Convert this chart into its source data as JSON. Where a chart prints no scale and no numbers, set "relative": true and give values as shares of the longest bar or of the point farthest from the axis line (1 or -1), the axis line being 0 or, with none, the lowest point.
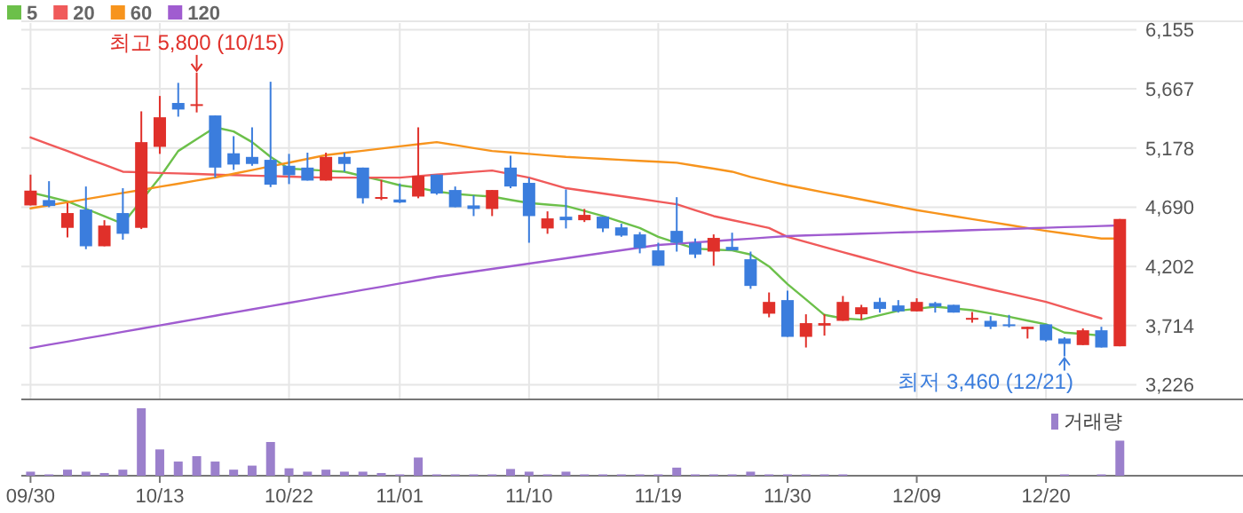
{
  "chart_data": [
    {
      "type": "candlestick",
      "categories": [
        "09/30",
        null,
        null,
        null,
        null,
        null,
        null,
        "10/13",
        null,
        null,
        null,
        null,
        null,
        null,
        "10/22",
        null,
        null,
        null,
        null,
        null,
        "11/01",
        null,
        null,
        null,
        null,
        null,
        null,
        "11/10",
        null,
        null,
        null,
        null,
        null,
        null,
        "11/19",
        null,
        null,
        null,
        null,
        null,
        null,
        "11/30",
        null,
        null,
        null,
        null,
        null,
        null,
        "12/09",
        null,
        null,
        null,
        null,
        null,
        null,
        "12/20",
        null,
        null,
        null,
        null
      ],
      "ohlc": [
        [
          4705,
          4959,
          4705,
          4827
        ],
        [
          4749,
          4905,
          4690,
          4700
        ],
        [
          4520,
          4725,
          4441,
          4642
        ],
        [
          4671,
          4861,
          4344,
          4368
        ],
        [
          4368,
          4583,
          4368,
          4539
        ],
        [
          4642,
          4847,
          4422,
          4471
        ],
        [
          4520,
          5481,
          4510,
          5227
        ],
        [
          5188,
          5608,
          5130,
          5432
        ],
        [
          5550,
          5716,
          5437,
          5496
        ],
        [
          5530,
          5800,
          5472,
          5540
        ],
        [
          5447,
          5447,
          4934,
          5017
        ],
        [
          5135,
          5276,
          4998,
          5042
        ],
        [
          5105,
          5349,
          5032,
          5047
        ],
        [
          5081,
          5725,
          4856,
          4876
        ],
        [
          5032,
          5130,
          4881,
          4954
        ],
        [
          5017,
          5140,
          4910,
          4910
        ],
        [
          4910,
          5140,
          4910,
          5105
        ],
        [
          5105,
          5140,
          4983,
          5047
        ],
        [
          5017,
          5017,
          4720,
          4764
        ],
        [
          4764,
          4915,
          4749,
          4774
        ],
        [
          4754,
          4886,
          4725,
          4729
        ],
        [
          4778,
          5349,
          4764,
          4949
        ],
        [
          4959,
          4959,
          4793,
          4803
        ],
        [
          4832,
          4861,
          4690,
          4690
        ],
        [
          4705,
          4788,
          4617,
          4676
        ],
        [
          4676,
          4832,
          4617,
          4832
        ],
        [
          5017,
          5115,
          4847,
          4861
        ],
        [
          4891,
          4934,
          4397,
          4617
        ],
        [
          4515,
          4656,
          4471,
          4598
        ],
        [
          4612,
          4837,
          4515,
          4583
        ],
        [
          4583,
          4676,
          4568,
          4627
        ],
        [
          4612,
          4612,
          4485,
          4515
        ],
        [
          4524,
          4554,
          4446,
          4456
        ],
        [
          4466,
          4485,
          4310,
          4354
        ],
        [
          4334,
          4397,
          4207,
          4207
        ],
        [
          4495,
          4773,
          4324,
          4397
        ],
        [
          4397,
          4432,
          4271,
          4300
        ],
        [
          4324,
          4466,
          4207,
          4437
        ],
        [
          4363,
          4480,
          4334,
          4334
        ],
        [
          4261,
          4324,
          4017,
          4041
        ],
        [
          3812,
          3987,
          3782,
          3909
        ],
        [
          3924,
          4002,
          3621,
          3621
        ],
        [
          3621,
          3807,
          3533,
          3734
        ],
        [
          3714,
          3807,
          3631,
          3734
        ],
        [
          3753,
          3958,
          3753,
          3909
        ],
        [
          3807,
          3885,
          3763,
          3865
        ],
        [
          3909,
          3943,
          3821,
          3851
        ],
        [
          3880,
          3924,
          3821,
          3831
        ],
        [
          3831,
          3939,
          3831,
          3909
        ],
        [
          3899,
          3909,
          3821,
          3870
        ],
        [
          3885,
          3885,
          3821,
          3821
        ],
        [
          3763,
          3826,
          3738,
          3777
        ],
        [
          3753,
          3792,
          3685,
          3704
        ],
        [
          3724,
          3802,
          3699,
          3714
        ],
        [
          3685,
          3704,
          3607,
          3704
        ],
        [
          3724,
          3724,
          3582,
          3592
        ],
        [
          3607,
          3617,
          3460,
          3563
        ],
        [
          3553,
          3690,
          3553,
          3675
        ],
        [
          3675,
          3704,
          3533,
          3533
        ],
        [
          3543,
          4593,
          3543,
          4593
        ]
      ],
      "colors": [
        "#e0302a",
        "#3b7ddd",
        "#e0302a",
        "#3b7ddd",
        "#e0302a",
        "#3b7ddd",
        "#e0302a",
        "#e0302a",
        "#3b7ddd",
        "#e0302a",
        "#3b7ddd",
        "#3b7ddd",
        "#3b7ddd",
        "#3b7ddd",
        "#3b7ddd",
        "#3b7ddd",
        "#e0302a",
        "#3b7ddd",
        "#3b7ddd",
        "#e0302a",
        "#3b7ddd",
        "#e0302a",
        "#3b7ddd",
        "#3b7ddd",
        "#3b7ddd",
        "#e0302a",
        "#3b7ddd",
        "#3b7ddd",
        "#e0302a",
        "#3b7ddd",
        "#e0302a",
        "#3b7ddd",
        "#3b7ddd",
        "#3b7ddd",
        "#3b7ddd",
        "#3b7ddd",
        "#3b7ddd",
        "#e0302a",
        "#3b7ddd",
        "#3b7ddd",
        "#e0302a",
        "#3b7ddd",
        "#e0302a",
        "#e0302a",
        "#e0302a",
        "#e0302a",
        "#3b7ddd",
        "#3b7ddd",
        "#e0302a",
        "#3b7ddd",
        "#3b7ddd",
        "#e0302a",
        "#3b7ddd",
        "#3b7ddd",
        "#e0302a",
        "#3b7ddd",
        "#3b7ddd",
        "#e0302a",
        "#3b7ddd",
        "#e0302a"
      ],
      "series": [
        {
          "name": "5",
          "type": "line",
          "color": "#6cc04a",
          "values": [
            4812,
            4776,
            4739,
            4677,
            4616,
            4554,
            4745,
            4935,
            5154,
            5251,
            5349,
            5315,
            5227,
            5105,
            5008,
            5000,
            4991,
            4983,
            4946,
            4910,
            4871,
            4850,
            4820,
            4800,
            4788,
            4778,
            4750,
            4725,
            4712,
            4700,
            4660,
            4617,
            4568,
            4519,
            4446,
            4397,
            4349,
            4340,
            4334,
            4300,
            4202,
            4056,
            3930,
            3802,
            3773,
            3763,
            3800,
            3836,
            3853,
            3870,
            3855,
            3841,
            3814,
            3787,
            3755,
            3724,
            3656,
            3645,
            3631,
            null
          ]
        },
        {
          "name": "20",
          "type": "line",
          "color": "#f05a5a",
          "values": [
            5266,
            5209,
            5153,
            5096,
            5040,
            4983,
            4978,
            4973,
            4969,
            4964,
            4959,
            4955,
            4951,
            4947,
            4942,
            4938,
            4934,
            4934,
            4934,
            4934,
            4934,
            4947,
            4959,
            4970,
            4982,
            4993,
            4964,
            4934,
            4890,
            4847,
            4825,
            4803,
            4781,
            4759,
            4737,
            4715,
            4666,
            4617,
            4584,
            4552,
            4519,
            4446,
            4404,
            4362,
            4320,
            4278,
            4237,
            4195,
            4153,
            4118,
            4083,
            4048,
            4013,
            3979,
            3944,
            3909,
            3864,
            3818,
            3773,
            null
          ]
        },
        {
          "name": "60",
          "type": "line",
          "color": "#f7941d",
          "values": [
            4681,
            4706,
            4731,
            4757,
            4782,
            4808,
            4833,
            4859,
            4884,
            4910,
            4935,
            4966,
            4997,
            5028,
            5058,
            5089,
            5120,
            5138,
            5156,
            5174,
            5192,
            5210,
            5227,
            5203,
            5178,
            5154,
            5142,
            5130,
            5117,
            5105,
            5097,
            5089,
            5081,
            5073,
            5065,
            5057,
            5032,
            5008,
            4983,
            4940,
            4905,
            4871,
            4842,
            4812,
            4783,
            4754,
            4725,
            4695,
            4666,
            4641,
            4617,
            4592,
            4568,
            4544,
            4519,
            4495,
            4474,
            4453,
            4432,
            4432
          ]
        },
        {
          "name": "120",
          "type": "line",
          "color": "#a05cd0",
          "values": [
            3529,
            3556,
            3582,
            3609,
            3635,
            3662,
            3689,
            3715,
            3742,
            3768,
            3795,
            3822,
            3848,
            3875,
            3901,
            3928,
            3955,
            3981,
            4008,
            4034,
            4061,
            4088,
            4115,
            4137,
            4159,
            4181,
            4203,
            4225,
            4247,
            4269,
            4291,
            4313,
            4335,
            4357,
            4379,
            4389,
            4400,
            4410,
            4421,
            4431,
            4442,
            4452,
            4457,
            4462,
            4467,
            4472,
            4477,
            4482,
            4486,
            4491,
            4496,
            4501,
            4506,
            4511,
            4516,
            4521,
            4526,
            4530,
            4535,
            4540
          ]
        }
      ],
      "ylim": [
        3105,
        6209
      ],
      "yticks": [
        {
          "value": 6155,
          "label": "6,155"
        },
        {
          "value": 5667,
          "label": "5,667"
        },
        {
          "value": 5178,
          "label": "5,178"
        },
        {
          "value": 4690,
          "label": "4,690"
        },
        {
          "value": 4202,
          "label": "4,202"
        },
        {
          "value": 3714,
          "label": "3,714"
        },
        {
          "value": 3226,
          "label": "3,226"
        }
      ],
      "grid": true,
      "legend": "top left",
      "annotations": [
        {
          "text": "최고 5,800 (10/15)",
          "y": 5800
        },
        "최저 3,460 (12/21)"
      ]
    },
    {
      "type": "bar",
      "relative": true,
      "categories": [
        null,
        null,
        null,
        null,
        null,
        null,
        null,
        null,
        null,
        null,
        null,
        null,
        null,
        null,
        null,
        null,
        null,
        null,
        null,
        null,
        null,
        null,
        null,
        null,
        null,
        null,
        null,
        null,
        null,
        null,
        null,
        null,
        null,
        null,
        null,
        null,
        null,
        null,
        null,
        null,
        null,
        null,
        null,
        null,
        null,
        null,
        null,
        null,
        null,
        null,
        null,
        null,
        null,
        null,
        null,
        null,
        null,
        null,
        null,
        null
      ],
      "series": [
        {
          "name": "거래량",
          "color": "#9b80cc",
          "values": [
            0.06,
            0.02,
            0.09,
            0.06,
            0.04,
            0.09,
            1,
            0.39,
            0.21,
            0.29,
            0.21,
            0.09,
            0.15,
            0.5,
            0.11,
            0.06,
            0.09,
            0.06,
            0.06,
            0.04,
            0.02,
            0.27,
            0.02,
            0.02,
            0.02,
            0.02,
            0.1,
            0.06,
            0.02,
            0.06,
            0.02,
            0.02,
            0.02,
            0.02,
            0.02,
            0.12,
            0.02,
            0.02,
            0.02,
            0.06,
            0.02,
            0.02,
            0.02,
            0.02,
            0.02,
            null,
            null,
            null,
            null,
            null,
            null,
            null,
            null,
            null,
            null,
            null,
            0.02,
            null,
            0.02,
            0.52
          ]
        }
      ],
      "legend": "top right"
    }
  ]
}
